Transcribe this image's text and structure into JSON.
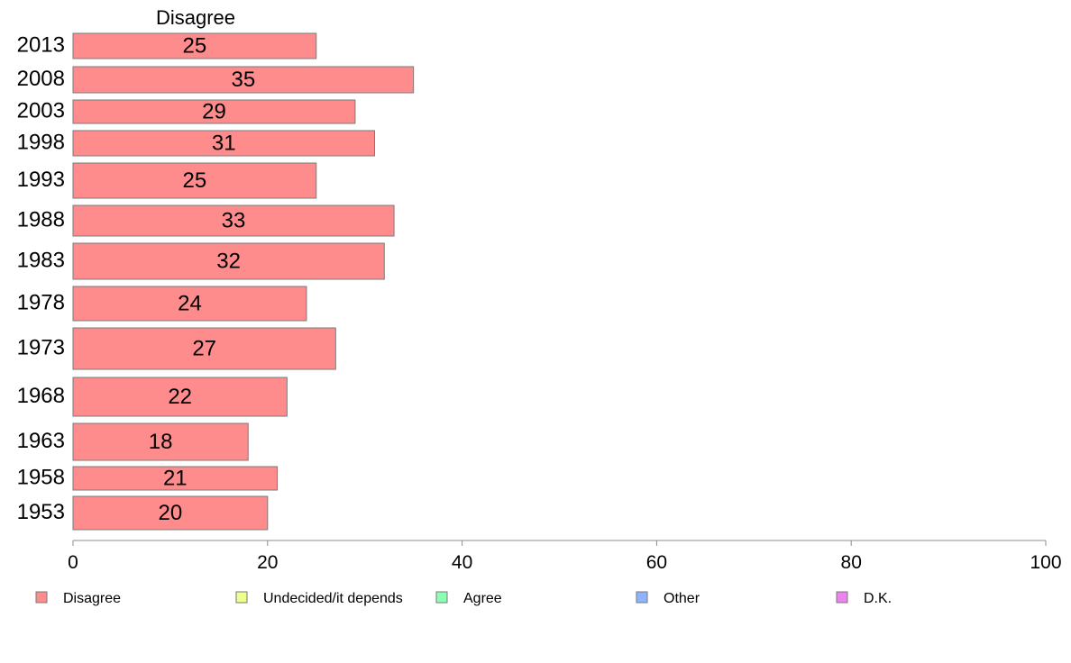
{
  "chart_data": {
    "type": "bar",
    "orientation": "horizontal",
    "column_title": "Disagree",
    "categories": [
      "2013",
      "2008",
      "2003",
      "1998",
      "1993",
      "1988",
      "1983",
      "1978",
      "1973",
      "1968",
      "1963",
      "1958",
      "1953"
    ],
    "series": [
      {
        "name": "Disagree",
        "color": "#ff8c8c",
        "values": [
          25,
          35,
          29,
          31,
          25,
          33,
          32,
          24,
          27,
          22,
          18,
          21,
          20
        ]
      }
    ],
    "xlim": [
      0,
      100
    ],
    "xticks": [
      "0",
      "20",
      "40",
      "60",
      "80",
      "100"
    ],
    "grid": false,
    "legend_position": "bottom",
    "legend": [
      {
        "label": "Disagree",
        "color": "#ff8c8c"
      },
      {
        "label": "Undecided/it depends",
        "color": "#eeff8c"
      },
      {
        "label": "Agree",
        "color": "#8cffb4"
      },
      {
        "label": "Other",
        "color": "#8cb4ff"
      },
      {
        "label": "D.K.",
        "color": "#ee82ee"
      }
    ]
  }
}
